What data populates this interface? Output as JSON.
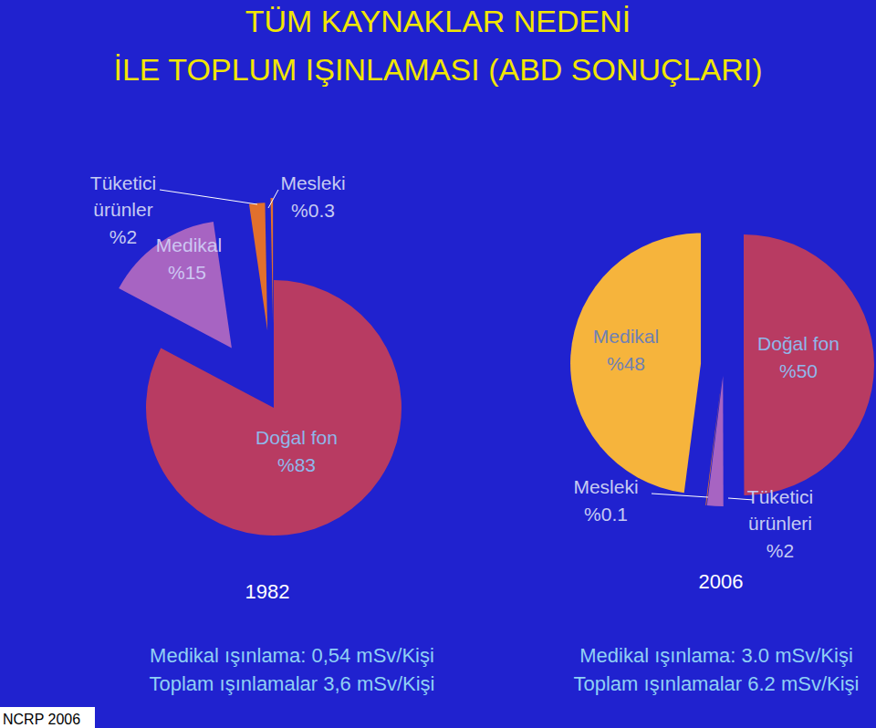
{
  "page": {
    "title": [
      "TÜM KAYNAKLAR NEDENİ",
      "İLE TOPLUM IŞINLAMASI (ABD SONUÇLARI)"
    ],
    "source": "NCRP 2006"
  },
  "chart_data": [
    {
      "type": "pie",
      "title": "1982",
      "categories": [
        "Doğal fon",
        "Medikal",
        "Tüketici ürünler",
        "Mesleki"
      ],
      "values": [
        83,
        15,
        2,
        0.3
      ],
      "value_labels": [
        "%83",
        "%15",
        "%2",
        "%0.3"
      ],
      "colors": [
        "#b83b62",
        "#a764c2",
        "#e2702c",
        "#e2702c"
      ],
      "data_labels": true,
      "annotations": [
        "Medikal ışınlama: 0,54 mSv/Kişi",
        "Toplam ışınlamalar 3,6 mSv/Kişi"
      ]
    },
    {
      "type": "pie",
      "title": "2006",
      "categories": [
        "Doğal fon",
        "Tüketici ürünleri",
        "Mesleki",
        "Medikal"
      ],
      "values": [
        50,
        2,
        0.1,
        48
      ],
      "value_labels": [
        "%50",
        "%2",
        "%0.1",
        "%48"
      ],
      "colors": [
        "#b83b62",
        "#a764c2",
        "#e2702c",
        "#f6b43c"
      ],
      "data_labels": true,
      "annotations": [
        "Medikal ışınlama: 3.0 mSv/Kişi",
        "Toplam ışınlamalar 6.2 mSv/Kişi"
      ]
    }
  ]
}
